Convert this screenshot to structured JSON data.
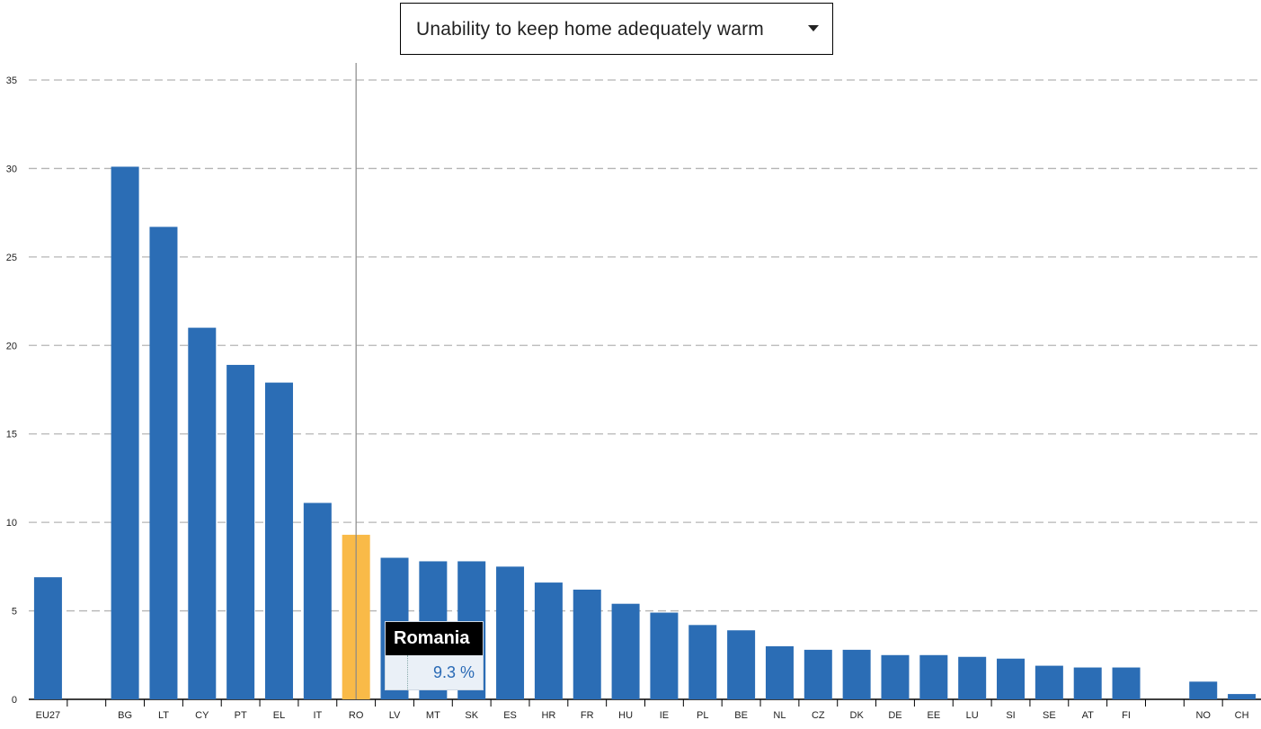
{
  "dropdown": {
    "selected": "Unability to keep home adequately warm"
  },
  "tooltip": {
    "title": "Romania",
    "value": "9.3 %"
  },
  "colors": {
    "bar": "#2b6db5",
    "highlight": "#f9ba48",
    "grid": "#b5b5b5"
  },
  "chart_data": {
    "type": "bar",
    "categories": [
      "EU27",
      "",
      "BG",
      "LT",
      "CY",
      "PT",
      "EL",
      "IT",
      "RO",
      "LV",
      "MT",
      "SK",
      "ES",
      "HR",
      "FR",
      "HU",
      "IE",
      "PL",
      "BE",
      "NL",
      "CZ",
      "DK",
      "DE",
      "EE",
      "LU",
      "SI",
      "SE",
      "AT",
      "FI",
      "",
      "NO",
      "CH"
    ],
    "values": [
      6.9,
      null,
      30.1,
      26.7,
      21.0,
      18.9,
      17.9,
      11.1,
      9.3,
      8.0,
      7.8,
      7.8,
      7.5,
      6.6,
      6.2,
      5.4,
      4.9,
      4.2,
      3.9,
      3.0,
      2.8,
      2.8,
      2.5,
      2.5,
      2.4,
      2.3,
      1.9,
      1.8,
      1.8,
      null,
      1.0,
      0.3
    ],
    "highlight": "RO",
    "ylim": [
      0,
      35
    ],
    "yticks": [
      0,
      5,
      10,
      15,
      20,
      25,
      30,
      35
    ],
    "grid": true,
    "title": "",
    "xlabel": "",
    "ylabel": ""
  }
}
